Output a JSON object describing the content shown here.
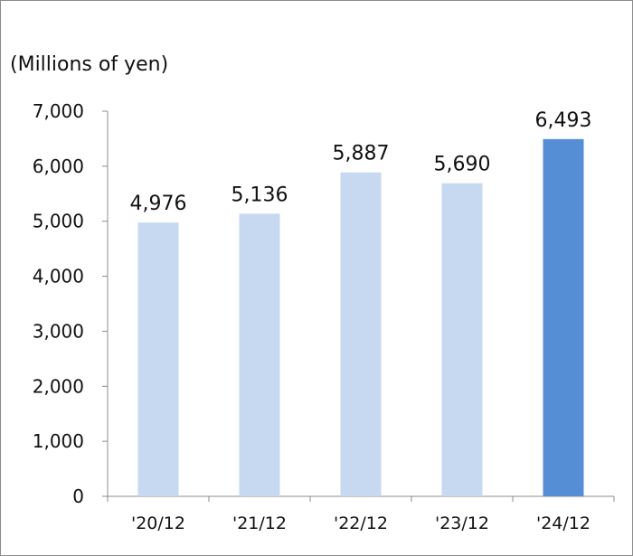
{
  "chart_data": {
    "type": "bar",
    "title": "",
    "xlabel": "",
    "ylabel": "(Millions of yen)",
    "categories": [
      "'20/12",
      "'21/12",
      "'22/12",
      "'23/12",
      "'24/12"
    ],
    "values": [
      4976,
      5136,
      5887,
      5690,
      6493
    ],
    "value_labels": [
      "4,976",
      "5,136",
      "5,887",
      "5,690",
      "6,493"
    ],
    "ylim": [
      0,
      7000
    ],
    "yticks": [
      0,
      1000,
      2000,
      3000,
      4000,
      5000,
      6000,
      7000
    ],
    "ytick_labels": [
      "0",
      "1,000",
      "2,000",
      "3,000",
      "4,000",
      "5,000",
      "6,000",
      "7,000"
    ],
    "grid": false,
    "legend": "none",
    "colors": {
      "bar_default": "#c6d9f1",
      "bar_highlight": "#558ed5",
      "axis": "#8c8c8c"
    },
    "highlight_index": 4
  }
}
